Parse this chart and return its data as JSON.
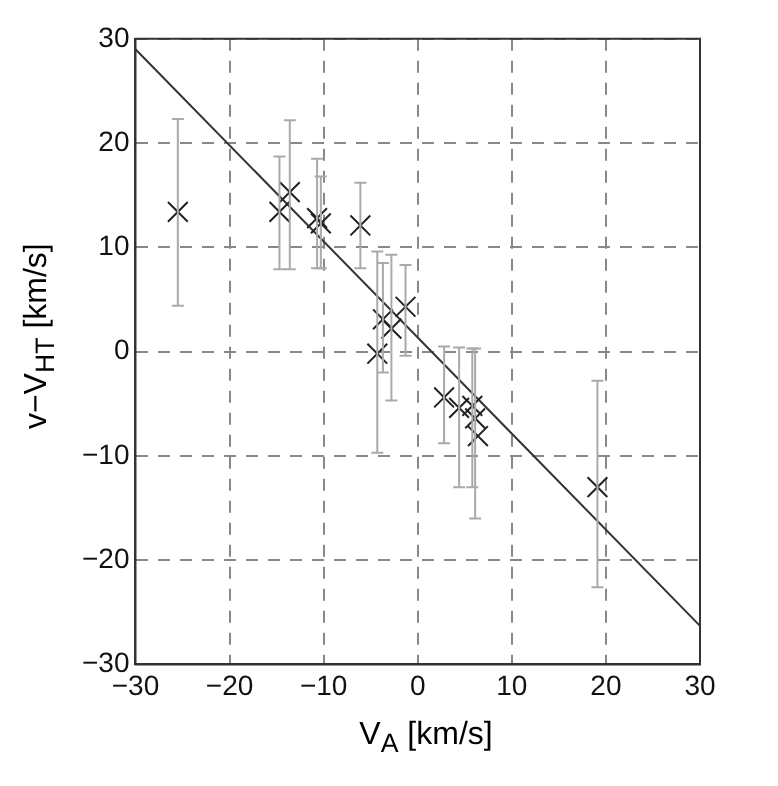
{
  "chart_data": {
    "type": "scatter",
    "xlabel": "V$_{A}$ [km/s]",
    "ylabel": "v−V$_{HT}$ [km/s]",
    "xlim": [
      -30,
      30
    ],
    "ylim": [
      -30,
      30
    ],
    "xticks": [
      -30,
      -20,
      -10,
      0,
      10,
      20,
      30
    ],
    "yticks": [
      -30,
      -20,
      -10,
      0,
      10,
      20,
      30
    ],
    "grid": true,
    "marker": "cross",
    "series": [
      {
        "type": "scatter",
        "color": "#222222",
        "x": [
          -25.5,
          -14.7,
          -13.6,
          -10.7,
          -10.3,
          -6.1,
          -4.3,
          -3.7,
          -2.8,
          -1.3,
          2.8,
          4.4,
          5.8,
          6.1,
          6.4,
          19.1
        ],
        "values": [
          13.4,
          13.4,
          15.3,
          12.8,
          12.3,
          12.1,
          -0.2,
          3.1,
          2.2,
          4.3,
          -4.4,
          -5.4,
          -5.2,
          -6.4,
          -8.1,
          -13
        ],
        "errors": [
          [
            4.4,
            22.3
          ],
          [
            7.9,
            18.7
          ],
          [
            7.9,
            22.2
          ],
          [
            8,
            18.5
          ],
          [
            8,
            16.8
          ],
          [
            8,
            16.2
          ],
          [
            -9.7,
            9.6
          ],
          [
            -2,
            8.5
          ],
          [
            -4.7,
            9.3
          ],
          [
            -0.4,
            8.3
          ],
          [
            -8.8,
            0.5
          ],
          [
            -13,
            0.4
          ],
          [
            -13,
            0.3
          ],
          [
            -16,
            0.3
          ],
          null,
          [
            -22.6,
            -2.8
          ]
        ]
      },
      {
        "type": "line",
        "color": "#333333",
        "x": [
          -30,
          30
        ],
        "values": [
          29,
          -26.3
        ],
        "marker": "none"
      }
    ]
  }
}
